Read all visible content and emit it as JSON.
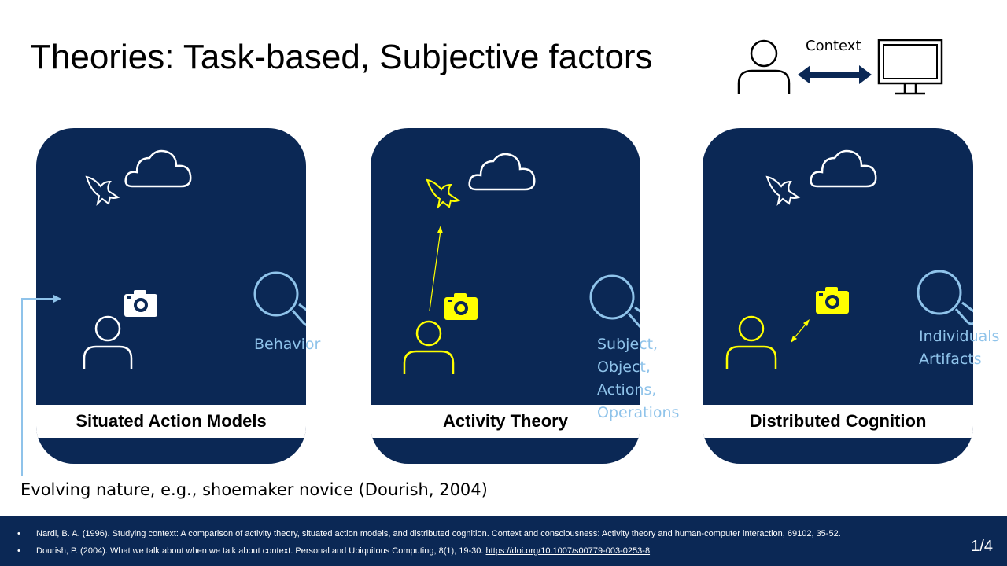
{
  "title": "Theories: Task-based, Subjective factors",
  "context_label": "Context",
  "cards": [
    {
      "label": "Situated Action Models",
      "lens_text": "Behavior"
    },
    {
      "label": "Activity Theory",
      "lens_text": "Subject,\nObject,\nActions,\nOperations"
    },
    {
      "label": "Distributed Cognition",
      "lens_text": "Individuals\nArtifacts"
    }
  ],
  "evolving_note": "Evolving nature, e.g., shoemaker novice (Dourish, 2004)",
  "references": [
    {
      "text": "Nardi, B. A. (1996). Studying context:  A comparison of activity theory, situated action models, and distributed cognition. Context and consciousness: Activity theory and human-computer interaction, 69102, 35-52.",
      "link": ""
    },
    {
      "text": "Dourish, P. (2004). What we talk about when we talk about context. Personal and Ubiquitous Computing, 8(1), 19-30. ",
      "link": "https://doi.org/10.1007/s00779-003-0253-8"
    }
  ],
  "page_number": "1/4",
  "colors": {
    "navy": "#0b2855",
    "highlight": "#ffff00",
    "light_blue": "#8fc3ea"
  }
}
